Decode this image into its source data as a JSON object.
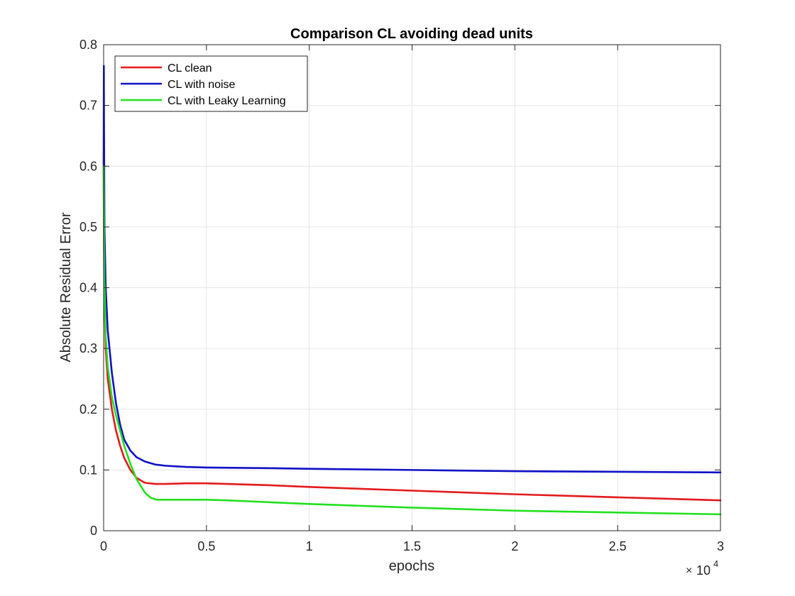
{
  "chart_data": {
    "type": "line",
    "title": "Comparison CL avoiding dead units",
    "xlabel": "epochs",
    "ylabel": "Absolute Residual Error",
    "x_exponent_label": "10",
    "x_exponent_power": "4",
    "xlim": [
      0,
      30000
    ],
    "ylim": [
      0,
      0.8
    ],
    "xticks": [
      0,
      5000,
      10000,
      15000,
      20000,
      25000,
      30000
    ],
    "xtick_labels": [
      "0",
      "0.5",
      "1",
      "1.5",
      "2",
      "2.5",
      "3"
    ],
    "yticks": [
      0,
      0.1,
      0.2,
      0.3,
      0.4,
      0.5,
      0.6,
      0.7,
      0.8
    ],
    "ytick_labels": [
      "0",
      "0.1",
      "0.2",
      "0.3",
      "0.4",
      "0.5",
      "0.6",
      "0.7",
      "0.8"
    ],
    "grid": true,
    "legend_position": "top-left",
    "series": [
      {
        "name": "CL clean",
        "color": "#e31a1c",
        "x": [
          0,
          30,
          100,
          200,
          400,
          600,
          800,
          1000,
          1300,
          1600,
          2000,
          2500,
          3000,
          4000,
          5000,
          6000,
          8000,
          10000,
          15000,
          20000,
          25000,
          30000
        ],
        "y": [
          0.6,
          0.4,
          0.3,
          0.25,
          0.2,
          0.165,
          0.14,
          0.12,
          0.1,
          0.087,
          0.079,
          0.077,
          0.077,
          0.078,
          0.078,
          0.077,
          0.075,
          0.072,
          0.066,
          0.06,
          0.055,
          0.05
        ]
      },
      {
        "name": "CL with noise",
        "color": "#1010c8",
        "x": [
          0,
          10,
          20,
          40,
          100,
          200,
          400,
          600,
          800,
          1000,
          1300,
          1600,
          2000,
          2500,
          3000,
          4000,
          5000,
          8000,
          10000,
          15000,
          20000,
          25000,
          30000
        ],
        "y": [
          0.6,
          0.765,
          0.66,
          0.5,
          0.4,
          0.33,
          0.26,
          0.21,
          0.175,
          0.15,
          0.132,
          0.121,
          0.114,
          0.109,
          0.107,
          0.105,
          0.104,
          0.103,
          0.102,
          0.1,
          0.098,
          0.097,
          0.096
        ]
      },
      {
        "name": "CL with Leaky Learning",
        "color": "#22e01e",
        "x": [
          0,
          30,
          100,
          200,
          400,
          600,
          800,
          1000,
          1300,
          1600,
          2000,
          2300,
          2600,
          3000,
          4000,
          5000,
          6000,
          8000,
          10000,
          15000,
          20000,
          25000,
          30000
        ],
        "y": [
          0.6,
          0.42,
          0.32,
          0.27,
          0.22,
          0.19,
          0.165,
          0.14,
          0.11,
          0.085,
          0.063,
          0.054,
          0.051,
          0.051,
          0.051,
          0.051,
          0.05,
          0.047,
          0.044,
          0.038,
          0.033,
          0.03,
          0.027
        ]
      }
    ]
  }
}
